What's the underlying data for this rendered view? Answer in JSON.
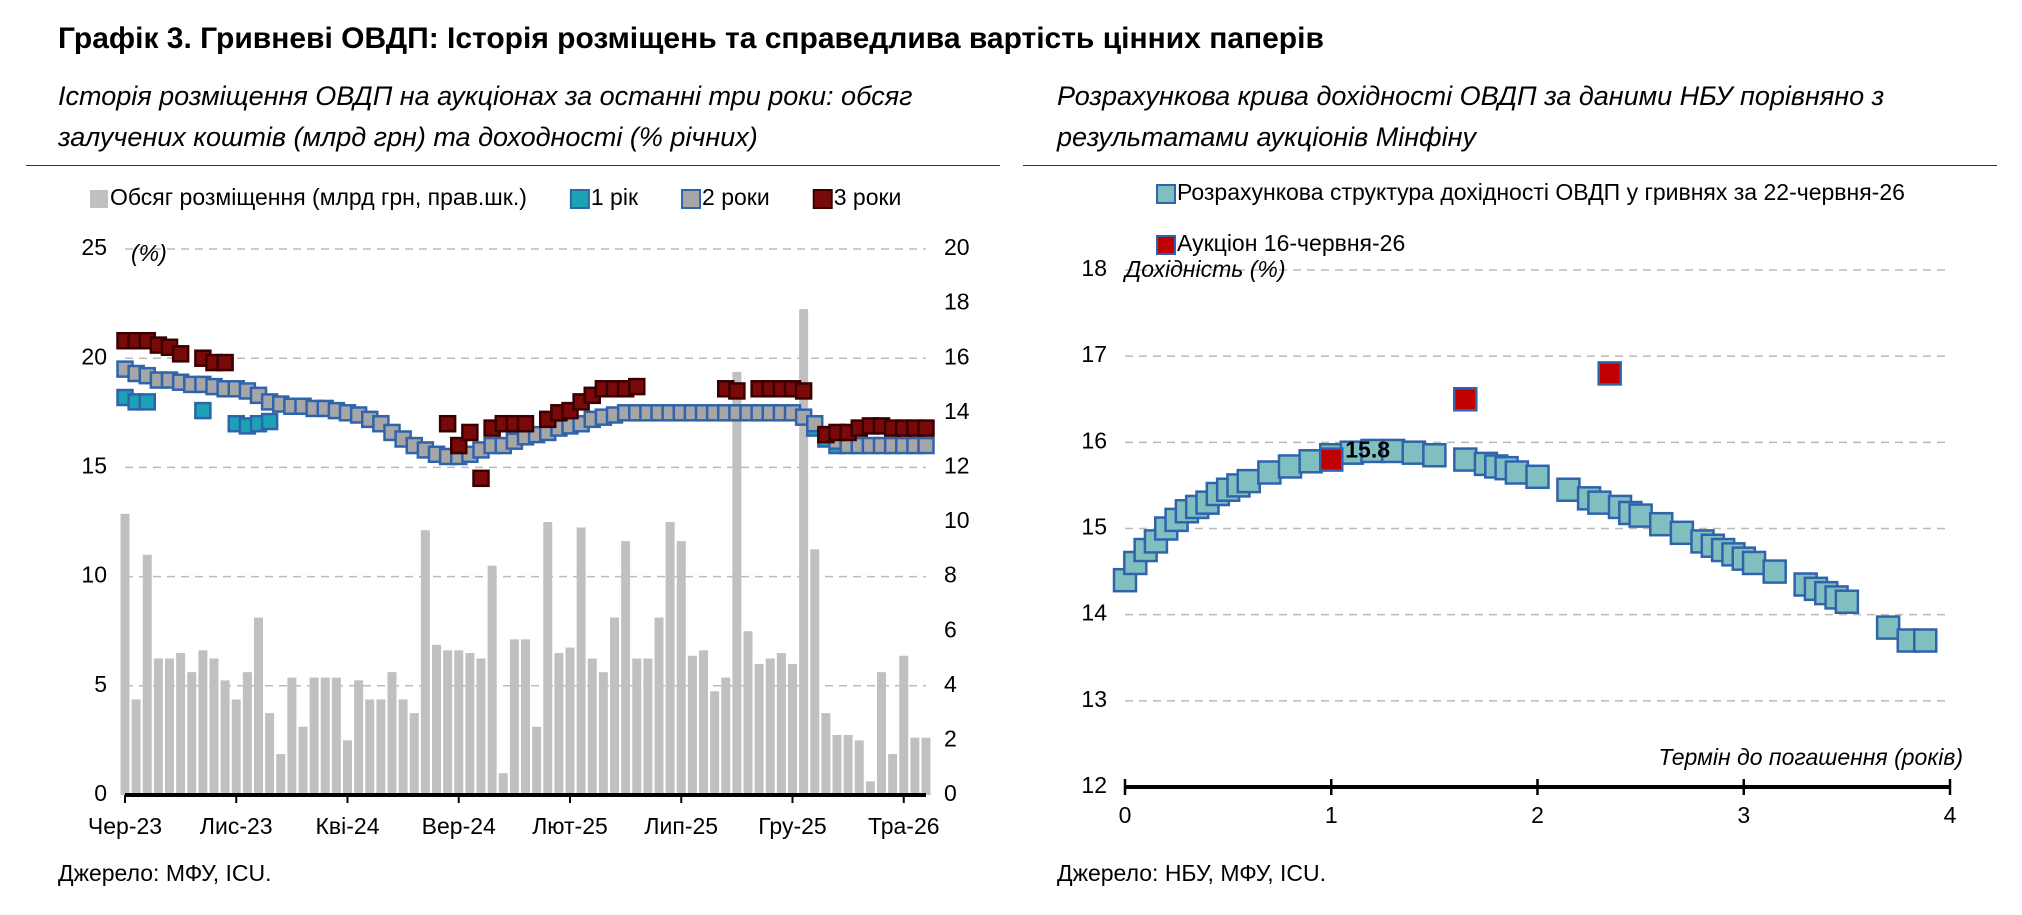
{
  "header": {
    "title": "Графік 3. Гривневі ОВДП: Історія розміщень та справедлива вартість цінних паперів"
  },
  "chart_data": [
    {
      "type": "combo",
      "subtitle": "Історія розміщення ОВДП на аукціонах за останні три роки: обсяг залучених коштів (млрд грн) та доходності (% річних)",
      "y_label": "(%)",
      "source": "Джерело: МФУ, ICU.",
      "legend": "top",
      "grid": true,
      "categories": [
        "Чер-23",
        null,
        null,
        null,
        null,
        null,
        null,
        null,
        null,
        null,
        "Лис-23",
        null,
        null,
        null,
        null,
        null,
        null,
        null,
        null,
        null,
        "Кві-24",
        null,
        null,
        null,
        null,
        null,
        null,
        null,
        null,
        null,
        "Вер-24",
        null,
        null,
        null,
        null,
        null,
        null,
        null,
        null,
        null,
        "Лют-25",
        null,
        null,
        null,
        null,
        null,
        null,
        null,
        null,
        null,
        "Лип-25",
        null,
        null,
        null,
        null,
        null,
        null,
        null,
        null,
        null,
        "Гру-25",
        null,
        null,
        null,
        null,
        null,
        null,
        null,
        null,
        null,
        "Тра-26",
        null,
        null
      ],
      "ylim": [
        0,
        25
      ],
      "yticks": [
        0,
        5,
        10,
        15,
        20,
        25
      ],
      "y2lim": [
        0,
        20
      ],
      "y2ticks": [
        0,
        2,
        4,
        6,
        8,
        10,
        12,
        14,
        16,
        18,
        20
      ],
      "series": [
        {
          "name": "Обсяг розміщення (млрд грн, прав.шк.)",
          "type": "bar",
          "axis": "y2",
          "color": "#c0c0c0",
          "values": [
            10.3,
            3.5,
            8.8,
            5,
            5,
            5.2,
            4.5,
            5.3,
            5,
            4.2,
            3.5,
            4.5,
            6.5,
            3,
            1.5,
            4.3,
            2.5,
            4.3,
            4.3,
            4.3,
            2,
            4.2,
            3.5,
            3.5,
            4.5,
            3.5,
            3,
            9.7,
            5.5,
            5.3,
            5.3,
            5.2,
            5,
            8.4,
            0.8,
            5.7,
            5.7,
            2.5,
            10,
            5.2,
            5.4,
            9.8,
            5,
            4.5,
            6.5,
            9.3,
            5,
            5,
            6.5,
            10,
            9.3,
            5.1,
            5.3,
            3.8,
            4.3,
            15.5,
            6,
            4.8,
            5,
            5.2,
            4.8,
            17.8,
            9,
            3,
            2.2,
            2.2,
            2,
            0.5,
            4.5,
            1.5,
            5.1,
            2.1,
            2.1
          ]
        },
        {
          "name": "1 рік",
          "type": "scatter",
          "color": "#1ba3b5",
          "edgecolor": "#2f64ad",
          "values": [
            18.2,
            18.0,
            18.0,
            null,
            null,
            null,
            null,
            17.6,
            null,
            null,
            17.0,
            16.9,
            17.0,
            17.1,
            null,
            null,
            null,
            null,
            null,
            null,
            null,
            null,
            null,
            null,
            null,
            null,
            null,
            null,
            null,
            null,
            null,
            null,
            null,
            null,
            null,
            null,
            null,
            null,
            null,
            null,
            null,
            null,
            null,
            null,
            null,
            null,
            null,
            null,
            null,
            null,
            null,
            null,
            null,
            null,
            null,
            null,
            null,
            null,
            null,
            null,
            null,
            null,
            16.8,
            16.3,
            16.0,
            null,
            null,
            null,
            null,
            null,
            null,
            null,
            null
          ]
        },
        {
          "name": "2 роки",
          "type": "scatter",
          "color": "#a6a6a6",
          "edgecolor": "#2f64ad",
          "values": [
            19.5,
            19.3,
            19.2,
            19.0,
            19.0,
            18.9,
            18.8,
            18.8,
            18.7,
            18.6,
            18.6,
            18.5,
            18.3,
            18.0,
            17.9,
            17.8,
            17.8,
            17.7,
            17.7,
            17.6,
            17.5,
            17.4,
            17.2,
            17.0,
            16.6,
            16.3,
            16.0,
            15.8,
            15.6,
            15.5,
            15.5,
            15.6,
            15.8,
            16.0,
            16.0,
            16.2,
            16.4,
            16.5,
            16.6,
            16.8,
            16.9,
            17.0,
            17.2,
            17.3,
            17.4,
            17.5,
            17.5,
            17.5,
            17.5,
            17.5,
            17.5,
            17.5,
            17.5,
            17.5,
            17.5,
            17.5,
            17.5,
            17.5,
            17.5,
            17.5,
            17.5,
            17.3,
            17.0,
            16.5,
            16.2,
            16.0,
            16.0,
            16.0,
            16.0,
            16.0,
            16.0,
            16.0,
            16.0
          ]
        },
        {
          "name": "3 роки",
          "type": "scatter",
          "color": "#7a0a0a",
          "edgecolor": "#3a0000",
          "values": [
            20.8,
            20.8,
            20.8,
            20.6,
            20.5,
            20.2,
            null,
            20.0,
            19.8,
            19.8,
            null,
            null,
            null,
            null,
            null,
            null,
            null,
            null,
            null,
            null,
            null,
            null,
            null,
            null,
            null,
            null,
            null,
            null,
            null,
            17.0,
            16.0,
            16.6,
            14.5,
            16.8,
            17.0,
            17.0,
            17.0,
            null,
            17.2,
            17.5,
            17.6,
            18.0,
            18.3,
            18.6,
            18.6,
            18.6,
            18.7,
            null,
            null,
            null,
            null,
            null,
            null,
            null,
            18.6,
            18.5,
            null,
            18.6,
            18.6,
            18.6,
            18.6,
            18.5,
            null,
            16.5,
            16.6,
            16.6,
            16.8,
            16.9,
            16.9,
            16.8,
            16.8,
            16.8,
            16.8
          ]
        }
      ]
    },
    {
      "type": "scatter",
      "subtitle": "Розрахункова крива дохідності ОВДП за даними НБУ порівняно з результатами аукціонів Мінфіну",
      "y_label": "Дохідність (%)",
      "x_label": "Термін до погашення (років)",
      "source": "Джерело: НБУ, МФУ, ICU.",
      "legend": "top",
      "grid": true,
      "xlim": [
        0,
        4
      ],
      "xticks": [
        0,
        1,
        2,
        3,
        4
      ],
      "ylim": [
        12,
        18
      ],
      "yticks": [
        12,
        13,
        14,
        15,
        16,
        17,
        18
      ],
      "series": [
        {
          "name": "Розрахункова структура дохідності ОВДП у гривнях за 22-червня-26",
          "color": "#7fbfbf",
          "edgecolor": "#2f64ad",
          "x": [
            0,
            0.05,
            0.1,
            0.15,
            0.2,
            0.25,
            0.3,
            0.35,
            0.4,
            0.45,
            0.5,
            0.55,
            0.6,
            0.7,
            0.8,
            0.9,
            1.0,
            1.1,
            1.2,
            1.3,
            1.4,
            1.5,
            1.65,
            1.75,
            1.8,
            1.85,
            1.9,
            2.0,
            2.15,
            2.25,
            2.3,
            2.4,
            2.45,
            2.5,
            2.6,
            2.7,
            2.8,
            2.85,
            2.9,
            2.95,
            3.0,
            3.05,
            3.15,
            3.3,
            3.35,
            3.4,
            3.45,
            3.5,
            3.7,
            3.8,
            3.88
          ],
          "values": [
            14.4,
            14.6,
            14.75,
            14.85,
            15.0,
            15.1,
            15.2,
            15.25,
            15.3,
            15.4,
            15.45,
            15.5,
            15.55,
            15.65,
            15.72,
            15.78,
            15.85,
            15.88,
            15.9,
            15.9,
            15.88,
            15.85,
            15.8,
            15.75,
            15.72,
            15.7,
            15.65,
            15.6,
            15.45,
            15.35,
            15.3,
            15.25,
            15.18,
            15.15,
            15.05,
            14.95,
            14.85,
            14.8,
            14.75,
            14.7,
            14.65,
            14.6,
            14.5,
            14.35,
            14.3,
            14.25,
            14.2,
            14.15,
            13.85,
            13.7,
            13.7
          ]
        },
        {
          "name": "Аукціон 16-червня-26",
          "color": "#c00000",
          "edgecolor": "#2f64ad",
          "x": [
            1.0,
            1.65,
            2.35
          ],
          "values": [
            15.8,
            16.5,
            16.8
          ],
          "show_label": [
            true,
            false,
            false
          ]
        }
      ]
    }
  ]
}
